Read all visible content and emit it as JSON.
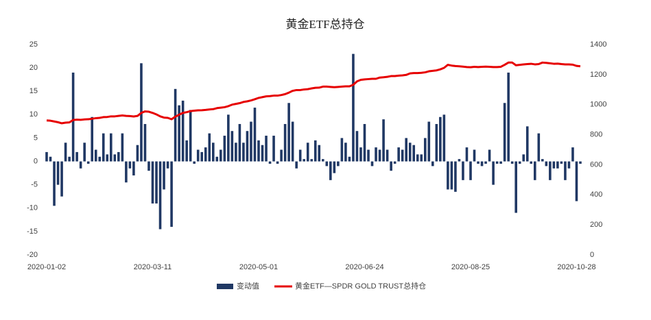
{
  "chart_data": {
    "type": "bar",
    "title": "黄金ETF总持仓",
    "categories": [
      "2020-01-02",
      null,
      null,
      null,
      null,
      null,
      null,
      null,
      null,
      null,
      null,
      null,
      null,
      null,
      null,
      null,
      null,
      null,
      null,
      null,
      null,
      null,
      null,
      null,
      null,
      null,
      null,
      null,
      "2020-03-11",
      null,
      null,
      null,
      null,
      null,
      null,
      null,
      null,
      null,
      null,
      null,
      null,
      null,
      null,
      null,
      null,
      null,
      null,
      null,
      null,
      null,
      null,
      null,
      null,
      null,
      null,
      null,
      "2020-05-01",
      null,
      null,
      null,
      null,
      null,
      null,
      null,
      null,
      null,
      null,
      null,
      null,
      null,
      null,
      null,
      null,
      null,
      null,
      null,
      null,
      null,
      null,
      null,
      null,
      null,
      null,
      null,
      "2020-06-24",
      null,
      null,
      null,
      null,
      null,
      null,
      null,
      null,
      null,
      null,
      null,
      null,
      null,
      null,
      null,
      null,
      null,
      null,
      null,
      null,
      null,
      null,
      null,
      null,
      null,
      null,
      null,
      "2020-08-25",
      null,
      null,
      null,
      null,
      null,
      null,
      null,
      null,
      null,
      null,
      null,
      null,
      null,
      null,
      null,
      null,
      null,
      null,
      null,
      null,
      null,
      null,
      null,
      null,
      null,
      null,
      null,
      "2020-10-28",
      null
    ],
    "series": [
      {
        "name": "变动值",
        "type": "bar",
        "color": "#203864",
        "values": [
          2,
          1,
          -9.5,
          -5,
          -7.5,
          4,
          1,
          19,
          2,
          -1.5,
          4,
          -0.5,
          9.5,
          2.5,
          1,
          6,
          1.5,
          6,
          1.5,
          2,
          6,
          -4.5,
          -1.5,
          -3,
          3.5,
          21,
          8,
          -2,
          -9,
          -9,
          -14.5,
          -6,
          -1.5,
          -14,
          15.5,
          12,
          13,
          4.5,
          11,
          -0.5,
          2.5,
          2,
          3,
          6,
          4,
          1,
          2.5,
          5.5,
          10,
          6.5,
          4,
          8,
          4,
          6.5,
          8.5,
          11.5,
          4.5,
          3.5,
          5.5,
          -0.5,
          5.5,
          -0.5,
          2.5,
          8,
          12.5,
          8.5,
          -1.5,
          2.5,
          0.5,
          4,
          0.5,
          4.5,
          3.5,
          0.5,
          -1,
          -4,
          -2.5,
          -1,
          5,
          4,
          1,
          23,
          6.5,
          3,
          8,
          2.5,
          -1,
          3,
          2.5,
          9,
          2.5,
          -2,
          -0.5,
          3,
          2.5,
          5,
          4,
          3.5,
          1.5,
          1.5,
          5,
          8.5,
          -1,
          8,
          9.5,
          10,
          -6,
          -6,
          -6.5,
          0.5,
          -4,
          3,
          -4,
          2.5,
          -0.5,
          -1,
          -0.5,
          2.5,
          -5,
          -0.5,
          -0.5,
          12.5,
          19,
          -0.5,
          -11,
          -0.5,
          1.5,
          7.5,
          -0.5,
          -4,
          6,
          0.5,
          -1,
          -4,
          -1.5,
          -1.5,
          -0.5,
          -4,
          -1.5,
          3,
          -8.5,
          -0.5
        ]
      },
      {
        "name": "黄金ETF—SPDR GOLD TRUST总持仓",
        "type": "line",
        "axis": "y2",
        "color": "#e60000",
        "values": [
          895,
          893,
          888,
          883,
          876,
          880,
          882,
          898,
          900,
          899,
          902,
          903,
          906,
          910,
          912,
          917,
          918,
          922,
          922,
          925,
          928,
          925,
          924,
          921,
          925,
          945,
          955,
          953,
          945,
          935,
          922,
          914,
          912,
          903,
          920,
          933,
          945,
          950,
          957,
          960,
          962,
          963,
          965,
          968,
          970,
          977,
          980,
          983,
          990,
          1000,
          1005,
          1010,
          1018,
          1022,
          1028,
          1036,
          1045,
          1050,
          1055,
          1057,
          1060,
          1060,
          1064,
          1070,
          1080,
          1092,
          1097,
          1097,
          1101,
          1103,
          1108,
          1112,
          1113,
          1120,
          1120,
          1118,
          1116,
          1118,
          1120,
          1122,
          1122,
          1132,
          1155,
          1165,
          1168,
          1170,
          1172,
          1172,
          1180,
          1182,
          1185,
          1190,
          1190,
          1193,
          1195,
          1198,
          1208,
          1210,
          1210,
          1212,
          1215,
          1222,
          1225,
          1228,
          1235,
          1245,
          1265,
          1260,
          1257,
          1255,
          1253,
          1250,
          1249,
          1252,
          1250,
          1252,
          1253,
          1252,
          1250,
          1250,
          1252,
          1265,
          1280,
          1280,
          1262,
          1265,
          1268,
          1270,
          1272,
          1268,
          1270,
          1280,
          1278,
          1275,
          1272,
          1273,
          1270,
          1268,
          1268,
          1266,
          1258,
          1255
        ]
      }
    ],
    "ylim": [
      -20,
      25
    ],
    "yticks": [
      -20,
      -15,
      -10,
      -5,
      0,
      5,
      10,
      15,
      20,
      25
    ],
    "y2lim": [
      0,
      1400
    ],
    "y2ticks": [
      0,
      200,
      400,
      600,
      800,
      1000,
      1200,
      1400
    ],
    "grid": false,
    "legend": "bottom"
  }
}
